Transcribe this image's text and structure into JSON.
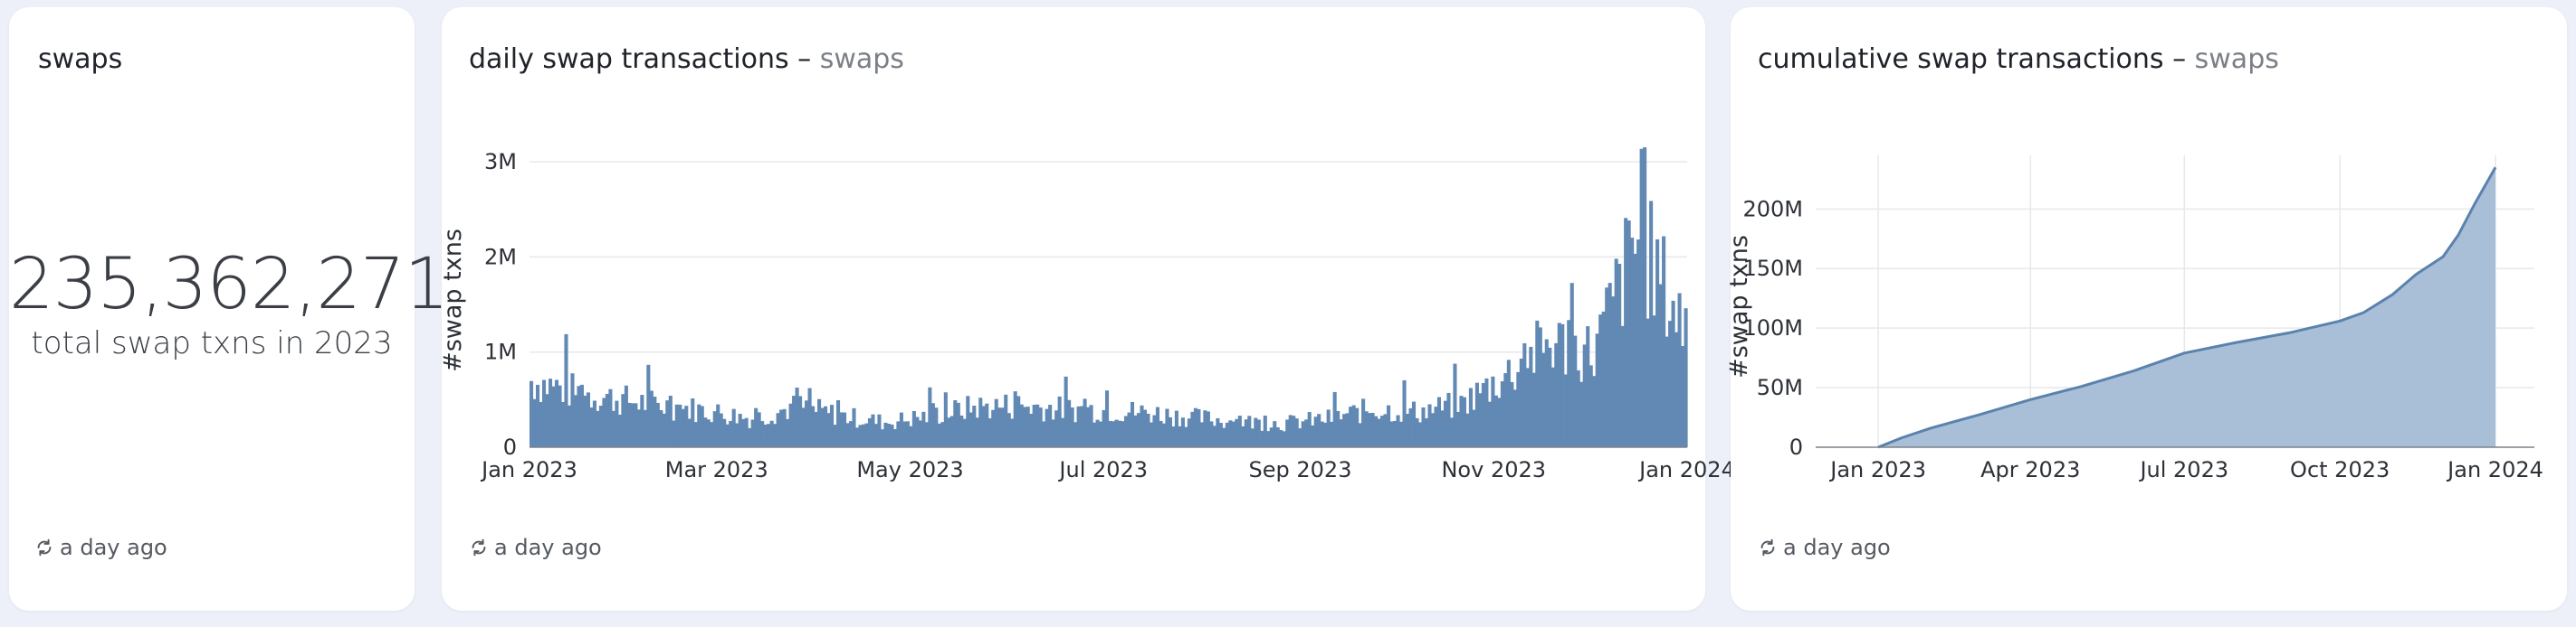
{
  "colors": {
    "bar": "#6189b4",
    "area_fill": "#a9bfd8",
    "area_line": "#5b82ad",
    "grid": "#e8e8ec",
    "background": "#edf0f8"
  },
  "card1": {
    "title": "swaps",
    "value": "235,362,271",
    "caption": "total swap txns in 2023",
    "footer": "a day ago",
    "footer_icon": "refresh-icon"
  },
  "card2": {
    "title": "daily swap transactions",
    "separator": "–",
    "subtitle": "swaps",
    "footer": "a day ago",
    "footer_icon": "refresh-icon"
  },
  "card3": {
    "title": "cumulative swap transactions",
    "separator": "–",
    "subtitle": "swaps",
    "footer": "a day ago",
    "footer_icon": "refresh-icon"
  },
  "chart_data": [
    {
      "type": "bar",
      "title": "daily swap transactions",
      "ylabel": "#swap txns",
      "xlabel": "",
      "x_ticks": [
        "Jan 2023",
        "Mar 2023",
        "May 2023",
        "Jul 2023",
        "Sep 2023",
        "Nov 2023",
        "Jan 2024"
      ],
      "y_ticks": [
        "0",
        "1M",
        "2M",
        "3M"
      ],
      "ylim": [
        0,
        3200000
      ],
      "grid": "horizontal",
      "weekly_x": [
        "2023-01-01",
        "2023-01-15",
        "2023-01-29",
        "2023-02-12",
        "2023-02-26",
        "2023-03-12",
        "2023-03-26",
        "2023-04-09",
        "2023-04-23",
        "2023-05-07",
        "2023-05-21",
        "2023-06-04",
        "2023-06-18",
        "2023-07-02",
        "2023-07-16",
        "2023-07-30",
        "2023-08-13",
        "2023-08-27",
        "2023-09-10",
        "2023-09-24",
        "2023-10-08",
        "2023-10-22",
        "2023-11-05",
        "2023-11-19",
        "2023-12-03",
        "2023-12-17",
        "2023-12-31"
      ],
      "weekly_values": [
        700000,
        580000,
        500000,
        440000,
        380000,
        300000,
        430000,
        330000,
        260000,
        330000,
        420000,
        440000,
        400000,
        390000,
        360000,
        310000,
        270000,
        250000,
        300000,
        400000,
        370000,
        450000,
        750000,
        1100000,
        1000000,
        2200000,
        1300000
      ]
    },
    {
      "type": "area",
      "title": "cumulative swap transactions",
      "ylabel": "#swap txns",
      "xlabel": "",
      "x_ticks": [
        "Jan 2023",
        "Apr 2023",
        "Jul 2023",
        "Oct 2023",
        "Jan 2024"
      ],
      "y_ticks": [
        "0",
        "50M",
        "100M",
        "150M",
        "200M"
      ],
      "ylim": [
        0,
        245000000
      ],
      "grid": "both",
      "x": [
        "2023-01-01",
        "2023-01-15",
        "2023-02-01",
        "2023-03-01",
        "2023-04-01",
        "2023-05-01",
        "2023-06-01",
        "2023-07-01",
        "2023-08-01",
        "2023-09-01",
        "2023-10-01",
        "2023-10-15",
        "2023-11-01",
        "2023-11-15",
        "2023-12-01",
        "2023-12-10",
        "2023-12-20",
        "2024-01-01"
      ],
      "values": [
        0,
        8000000,
        16000000,
        27000000,
        40000000,
        51000000,
        64000000,
        79000000,
        88000000,
        96000000,
        106000000,
        113000000,
        128000000,
        145000000,
        160000000,
        178000000,
        205000000,
        235000000
      ]
    }
  ]
}
